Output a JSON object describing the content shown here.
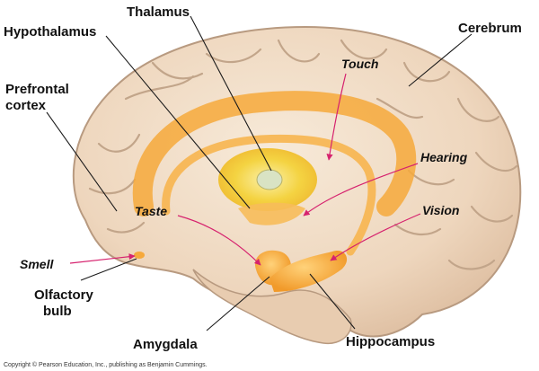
{
  "labels": {
    "thalamus": "Thalamus",
    "hypothalamus": "Hypothalamus",
    "cerebrum": "Cerebrum",
    "prefrontal_line1": "Prefrontal",
    "prefrontal_line2": "cortex",
    "olfactory_line1": "Olfactory",
    "olfactory_line2": "bulb",
    "amygdala": "Amygdala",
    "hippocampus": "Hippocampus"
  },
  "senses": {
    "touch": "Touch",
    "hearing": "Hearing",
    "taste": "Taste",
    "vision": "Vision",
    "smell": "Smell"
  },
  "copyright": "Copyright © Pearson Education, Inc., publishing as Benjamin Cummings.",
  "colors": {
    "brain": "#f0dcc6",
    "brain_outline": "#b89a80",
    "limbic": "#f6a93b",
    "thalamus": "#f4d23a",
    "sense_arrow": "#d6226e"
  }
}
